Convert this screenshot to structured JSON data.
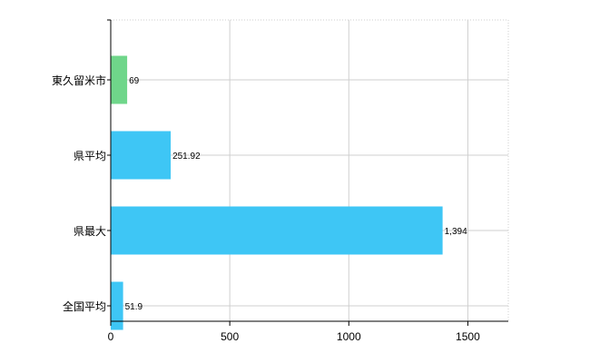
{
  "chart_data": {
    "type": "bar",
    "orientation": "horizontal",
    "categories": [
      "東久留米市",
      "県平均",
      "県最大",
      "全国平均"
    ],
    "values": [
      69,
      251.92,
      1394,
      51.9
    ],
    "value_labels": [
      "69",
      "251.92",
      "1,394",
      "51.9"
    ],
    "bar_colors": [
      "#6fd68a",
      "#3ec6f5",
      "#3ec6f5",
      "#3ec6f5"
    ],
    "xlim": [
      0,
      1670
    ],
    "x_ticks": [
      0,
      500,
      1000,
      1500
    ],
    "x_tick_labels": [
      "0",
      "500",
      "1000",
      "1500"
    ],
    "grid": true,
    "grid_style": "dotted",
    "title": "",
    "xlabel": "",
    "ylabel": ""
  }
}
